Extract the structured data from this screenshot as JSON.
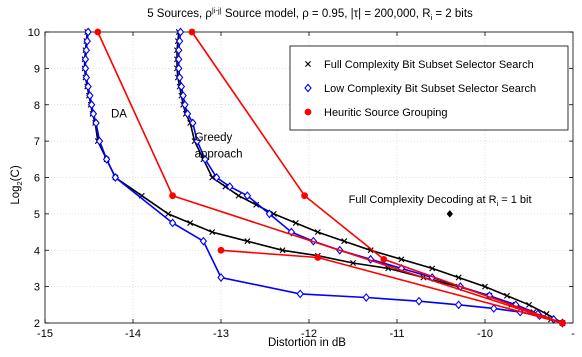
{
  "chart_data": {
    "type": "line",
    "title": {
      "prefix": "5 Sources, ρ",
      "sup": "|i-j|",
      "middle": " Source model, ρ = 0.95, |τ| = 200,000, R",
      "sub": "i",
      "suffix": " = 2 bits"
    },
    "xlabel": "Distortion in dB",
    "ylabel": {
      "main": "Log",
      "sub": "2",
      "suffix": "(C)"
    },
    "xlim": [
      -15,
      -9
    ],
    "ylim": [
      2,
      10
    ],
    "x_ticks": [
      -15,
      -14,
      -13,
      -12,
      -11,
      -10
    ],
    "x_tick_labels": [
      "-15",
      "-14",
      "-13",
      "-12",
      "-11",
      "-10"
    ],
    "x_last_tick_label": "-",
    "y_ticks": [
      2,
      3,
      4,
      5,
      6,
      7,
      8,
      9,
      10
    ],
    "y_tick_labels": [
      "2",
      "3",
      "4",
      "5",
      "6",
      "7",
      "8",
      "9",
      "10"
    ],
    "grid": true,
    "legend_position": "top-right",
    "series": [
      {
        "name": "Full Complexity Bit Subset Selector Search",
        "color": "#000000",
        "marker": "x",
        "curves": [
          {
            "x": [
              -14.52,
              -14.53,
              -14.54,
              -14.55,
              -14.55,
              -14.54,
              -14.52,
              -14.5,
              -14.48,
              -14.46,
              -14.43,
              -14.4,
              -14.3,
              -14.2,
              -13.9,
              -13.6,
              -13.35,
              -13.1,
              -12.7,
              -12.3,
              -11.9,
              -11.5,
              -11.1,
              -10.7,
              -10.3,
              -9.95,
              -9.7,
              -9.45,
              -9.25,
              -9.12
            ],
            "y": [
              10,
              9.75,
              9.5,
              9.25,
              9.0,
              8.75,
              8.5,
              8.25,
              8.0,
              7.75,
              7.5,
              7.0,
              6.5,
              6.0,
              5.5,
              5.0,
              4.75,
              4.5,
              4.25,
              4.0,
              3.85,
              3.65,
              3.5,
              3.25,
              3.0,
              2.75,
              2.5,
              2.3,
              2.1,
              2.0
            ]
          },
          {
            "x": [
              -13.48,
              -13.49,
              -13.5,
              -13.5,
              -13.5,
              -13.49,
              -13.47,
              -13.45,
              -13.43,
              -13.4,
              -13.35,
              -13.3,
              -13.2,
              -13.1,
              -12.95,
              -12.8,
              -12.6,
              -12.4,
              -12.15,
              -11.9,
              -11.6,
              -11.3,
              -10.95,
              -10.6,
              -10.3,
              -10.0,
              -9.75,
              -9.5,
              -9.3,
              -9.12
            ],
            "y": [
              10,
              9.75,
              9.5,
              9.25,
              9.0,
              8.75,
              8.5,
              8.25,
              8.0,
              7.75,
              7.5,
              7.0,
              6.5,
              6.0,
              5.75,
              5.5,
              5.25,
              5.0,
              4.75,
              4.5,
              4.25,
              4.0,
              3.75,
              3.5,
              3.25,
              3.0,
              2.75,
              2.5,
              2.25,
              2.0
            ]
          }
        ]
      },
      {
        "name": "Low Complexity Bit Subset Selector Search",
        "color": "#0000ff",
        "marker": "diamond",
        "curves": [
          {
            "x": [
              -14.51,
              -14.52,
              -14.53,
              -14.54,
              -14.54,
              -14.53,
              -14.51,
              -14.49,
              -14.47,
              -14.45,
              -14.42,
              -14.38,
              -14.3,
              -14.2,
              -13.55,
              -13.2,
              -13.0,
              -12.1,
              -11.35,
              -10.75,
              -10.3,
              -9.9,
              -9.6,
              -9.38,
              -9.22,
              -9.12
            ],
            "y": [
              10,
              9.75,
              9.5,
              9.25,
              9.0,
              8.75,
              8.5,
              8.25,
              8.0,
              7.75,
              7.5,
              7.0,
              6.5,
              6.0,
              4.75,
              4.25,
              3.25,
              2.8,
              2.7,
              2.6,
              2.5,
              2.4,
              2.3,
              2.2,
              2.1,
              2.0
            ]
          },
          {
            "x": [
              -13.46,
              -13.47,
              -13.48,
              -13.48,
              -13.48,
              -13.47,
              -13.45,
              -13.43,
              -13.41,
              -13.38,
              -13.32,
              -13.27,
              -13.18,
              -13.05,
              -12.9,
              -12.7,
              -12.45,
              -12.2,
              -11.95,
              -11.65,
              -11.3,
              -10.95,
              -10.6,
              -10.28,
              -9.95,
              -9.65,
              -9.4,
              -9.12
            ],
            "y": [
              10,
              9.75,
              9.5,
              9.25,
              9.0,
              8.75,
              8.5,
              8.25,
              8.0,
              7.75,
              7.5,
              7.0,
              6.5,
              6.0,
              5.75,
              5.5,
              5.0,
              4.5,
              4.25,
              4.0,
              3.75,
              3.5,
              3.25,
              3.0,
              2.75,
              2.5,
              2.25,
              2.0
            ]
          }
        ]
      },
      {
        "name": "Heuritic Source Grouping",
        "color": "#ff0000",
        "marker": "circle",
        "curves": [
          {
            "x": [
              -14.4,
              -13.55,
              -9.12
            ],
            "y": [
              10,
              5.5,
              2.0
            ]
          },
          {
            "x": [
              -13.33,
              -12.05,
              -11.15,
              -9.12
            ],
            "y": [
              10,
              5.5,
              3.75,
              2.0
            ]
          },
          {
            "x": [
              -13.0,
              -11.9,
              -9.12
            ],
            "y": [
              4.0,
              3.8,
              2.0
            ]
          }
        ]
      }
    ],
    "legend": [
      "Full Complexity Bit Subset Selector Search",
      "Low Complexity Bit Subset Selector Search",
      "Heuritic Source Grouping"
    ],
    "annotations": [
      {
        "text": "DA",
        "x": -14.25,
        "y": 7.65
      },
      {
        "text": "Greedy",
        "x": -13.3,
        "y": 7.0
      },
      {
        "text": "approach",
        "x": -13.3,
        "y": 6.55
      }
    ],
    "special_point": {
      "label": {
        "prefix": "Full Complexity Decoding at R",
        "sub": "i",
        "suffix": " = 1 bit"
      },
      "x": -10.4,
      "y": 5.0,
      "label_x": -11.55,
      "label_y": 5.3,
      "color": "#000000"
    }
  }
}
